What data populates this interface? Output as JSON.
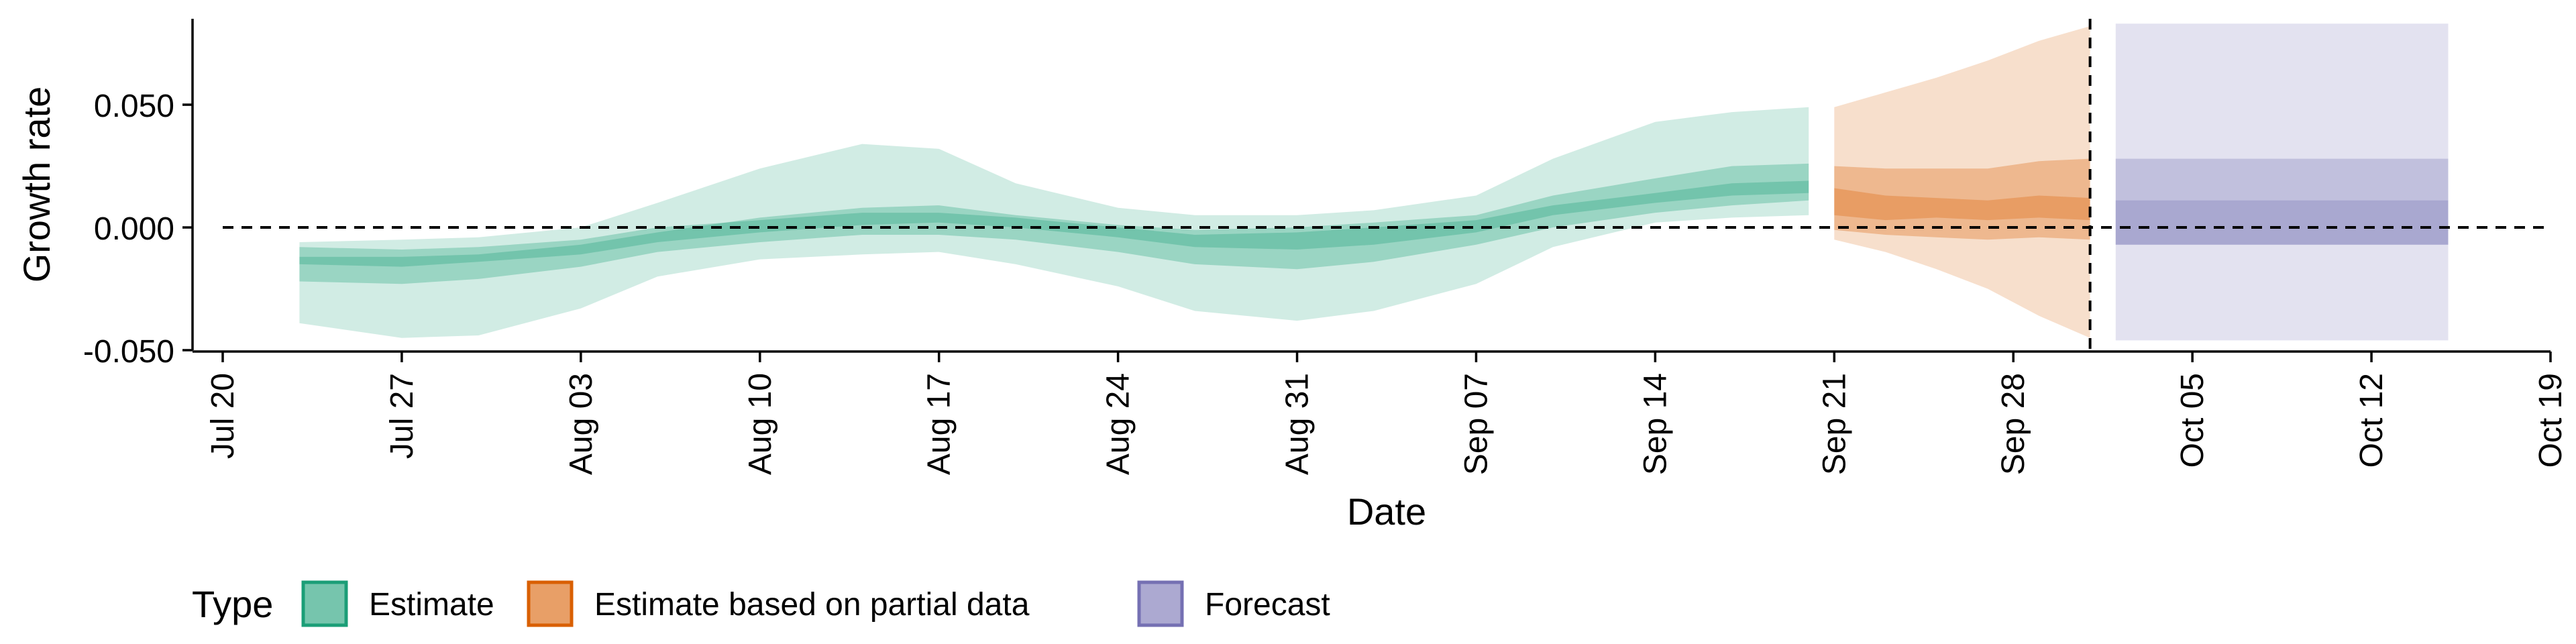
{
  "chart_data": {
    "type": "area",
    "xlabel": "Date",
    "ylabel": "Growth rate",
    "ylim": [
      -0.05,
      0.085
    ],
    "xlim": [
      "2020-07-20",
      "2020-10-19"
    ],
    "yticks": [
      -0.05,
      0.0,
      0.05
    ],
    "ytick_labels": [
      "-0.050",
      "0.000",
      "0.050"
    ],
    "xticks": [
      "2020-07-20",
      "2020-07-27",
      "2020-08-03",
      "2020-08-10",
      "2020-08-17",
      "2020-08-24",
      "2020-08-31",
      "2020-09-07",
      "2020-09-14",
      "2020-09-21",
      "2020-09-28",
      "2020-10-05",
      "2020-10-12",
      "2020-10-19"
    ],
    "xtick_labels": [
      "Jul 20",
      "Jul 27",
      "Aug 03",
      "Aug 10",
      "Aug 17",
      "Aug 24",
      "Aug 31",
      "Sep 07",
      "Sep 14",
      "Sep 21",
      "Sep 28",
      "Oct 05",
      "Oct 12",
      "Oct 19"
    ],
    "reference_hline": 0.0,
    "reference_vline": "2020-10-01",
    "legend": {
      "title": "Type",
      "position": "bottom-left",
      "entries": [
        "Estimate",
        "Estimate based on partial data",
        "Forecast"
      ]
    },
    "colors": {
      "Estimate": "#1b9e77",
      "Estimate based on partial data": "#d95f02",
      "Forecast": "#7570b3"
    },
    "series": [
      {
        "name": "Estimate",
        "x": [
          "2020-07-23",
          "2020-07-27",
          "2020-07-30",
          "2020-08-03",
          "2020-08-06",
          "2020-08-10",
          "2020-08-14",
          "2020-08-17",
          "2020-08-20",
          "2020-08-24",
          "2020-08-27",
          "2020-08-31",
          "2020-09-03",
          "2020-09-07",
          "2020-09-10",
          "2020-09-14",
          "2020-09-17",
          "2020-09-20"
        ],
        "lower90": [
          -0.039,
          -0.045,
          -0.044,
          -0.033,
          -0.02,
          -0.013,
          -0.011,
          -0.01,
          -0.015,
          -0.024,
          -0.034,
          -0.038,
          -0.034,
          -0.023,
          -0.008,
          0.002,
          0.004,
          0.005
        ],
        "upper90": [
          -0.006,
          -0.005,
          -0.004,
          0.0,
          0.01,
          0.024,
          0.034,
          0.032,
          0.018,
          0.008,
          0.005,
          0.005,
          0.007,
          0.013,
          0.028,
          0.043,
          0.047,
          0.049
        ],
        "lower50": [
          -0.022,
          -0.023,
          -0.021,
          -0.016,
          -0.01,
          -0.006,
          -0.003,
          -0.003,
          -0.005,
          -0.01,
          -0.015,
          -0.017,
          -0.014,
          -0.007,
          0.0,
          0.006,
          0.009,
          0.011
        ],
        "upper50": [
          -0.012,
          -0.012,
          -0.011,
          -0.007,
          -0.002,
          0.004,
          0.008,
          0.009,
          0.005,
          0.001,
          -0.001,
          0.0,
          0.002,
          0.005,
          0.013,
          0.02,
          0.025,
          0.026
        ],
        "lower20": [
          -0.015,
          -0.016,
          -0.014,
          -0.011,
          -0.006,
          -0.002,
          0.001,
          0.002,
          0.0,
          -0.004,
          -0.008,
          -0.009,
          -0.007,
          -0.002,
          0.005,
          0.01,
          0.013,
          0.014
        ],
        "upper20": [
          -0.008,
          -0.009,
          -0.008,
          -0.005,
          0.0,
          0.003,
          0.006,
          0.006,
          0.004,
          0.0,
          -0.003,
          -0.002,
          0.0,
          0.003,
          0.009,
          0.014,
          0.018,
          0.019
        ]
      },
      {
        "name": "Estimate based on partial data",
        "x": [
          "2020-09-21",
          "2020-09-23",
          "2020-09-25",
          "2020-09-27",
          "2020-09-29",
          "2020-10-01"
        ],
        "lower90": [
          -0.005,
          -0.01,
          -0.017,
          -0.025,
          -0.036,
          -0.045
        ],
        "upper90": [
          0.049,
          0.055,
          0.061,
          0.068,
          0.076,
          0.082
        ],
        "lower50": [
          -0.001,
          -0.003,
          -0.004,
          -0.005,
          -0.004,
          -0.005
        ],
        "upper50": [
          0.025,
          0.024,
          0.024,
          0.024,
          0.027,
          0.028
        ],
        "lower20": [
          0.005,
          0.003,
          0.004,
          0.003,
          0.004,
          0.003
        ],
        "upper20": [
          0.016,
          0.013,
          0.012,
          0.011,
          0.013,
          0.012
        ]
      },
      {
        "name": "Forecast",
        "x": [
          "2020-10-02",
          "2020-10-15"
        ],
        "lower90": [
          -0.046,
          -0.046
        ],
        "upper90": [
          0.083,
          0.083
        ],
        "lower50": [
          -0.007,
          -0.007
        ],
        "upper50": [
          0.028,
          0.028
        ],
        "lower20": [
          -0.007,
          -0.007
        ],
        "upper20": [
          0.011,
          0.011
        ]
      }
    ]
  }
}
